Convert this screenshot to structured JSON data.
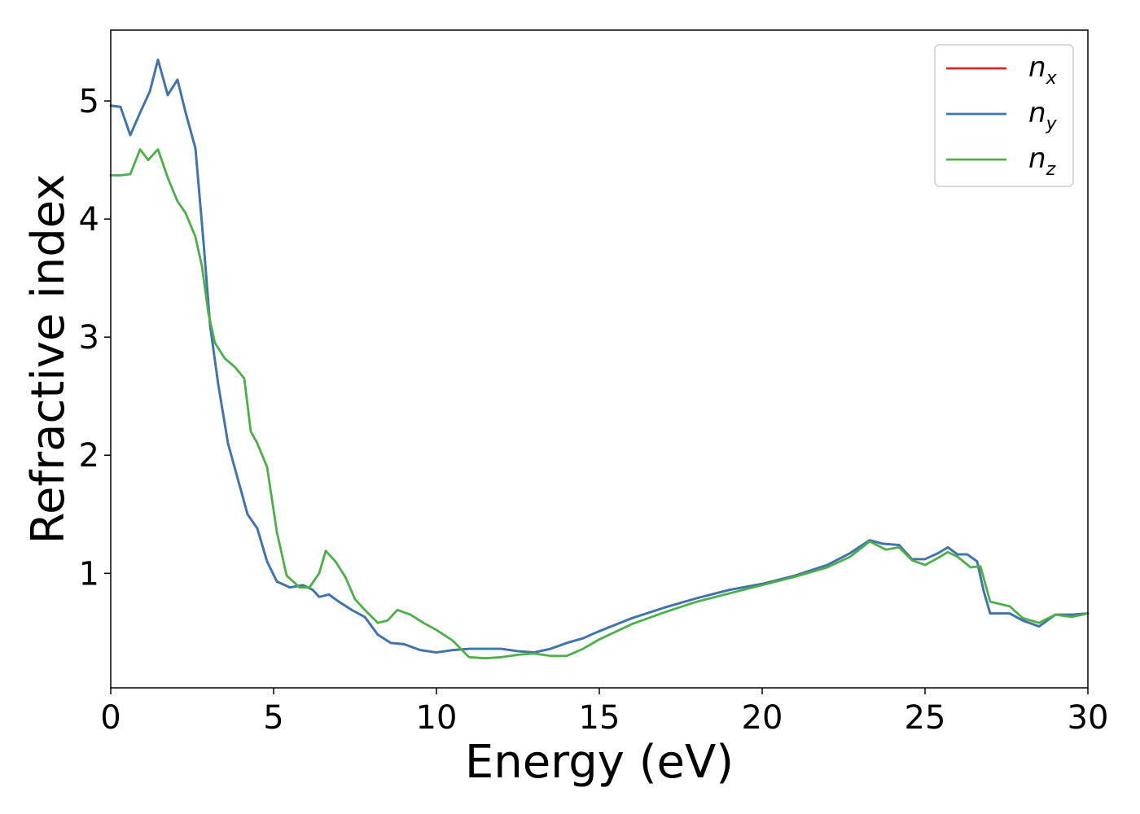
{
  "chart_data": {
    "type": "line",
    "title": "",
    "xlabel": "Energy (eV)",
    "ylabel": "Refractive index",
    "xlim": [
      0,
      30
    ],
    "ylim": [
      0.03,
      5.6
    ],
    "xticks": [
      0,
      5,
      10,
      15,
      20,
      25,
      30
    ],
    "yticks": [
      1,
      2,
      3,
      4,
      5
    ],
    "grid": false,
    "legend_position": "top-right",
    "series": [
      {
        "name": "n_x",
        "legend_base": "n",
        "legend_sub": "x",
        "color": "#d62728",
        "x": [
          0,
          0.3,
          0.6,
          0.9,
          1.2,
          1.45,
          1.75,
          2.05,
          2.3,
          2.6,
          2.85,
          3.05,
          3.3,
          3.6,
          3.9,
          4.2,
          4.5,
          4.8,
          5.1,
          5.5,
          5.9,
          6.2,
          6.4,
          6.7,
          7.0,
          7.4,
          7.8,
          8.2,
          8.6,
          9.0,
          9.5,
          10.0,
          10.5,
          11.0,
          11.5,
          12.0,
          12.5,
          13.0,
          13.5,
          14.0,
          14.5,
          15.0,
          16.0,
          17.0,
          18.0,
          19.0,
          20.0,
          21.0,
          22.0,
          22.7,
          23.3,
          23.7,
          24.2,
          24.6,
          25.0,
          25.4,
          25.7,
          26.0,
          26.3,
          26.6,
          26.8,
          27.0,
          27.3,
          27.6,
          28.0,
          28.5,
          29.0,
          29.5,
          30.0
        ],
        "y": [
          4.96,
          4.95,
          4.71,
          4.9,
          5.08,
          5.35,
          5.05,
          5.18,
          4.9,
          4.6,
          3.8,
          3.1,
          2.6,
          2.1,
          1.8,
          1.5,
          1.38,
          1.1,
          0.93,
          0.88,
          0.9,
          0.86,
          0.8,
          0.82,
          0.76,
          0.69,
          0.63,
          0.48,
          0.41,
          0.4,
          0.35,
          0.33,
          0.35,
          0.36,
          0.36,
          0.36,
          0.34,
          0.33,
          0.36,
          0.41,
          0.45,
          0.51,
          0.62,
          0.71,
          0.79,
          0.86,
          0.91,
          0.98,
          1.07,
          1.17,
          1.28,
          1.25,
          1.24,
          1.12,
          1.12,
          1.17,
          1.22,
          1.16,
          1.16,
          1.1,
          0.85,
          0.66,
          0.66,
          0.66,
          0.6,
          0.55,
          0.65,
          0.65,
          0.66
        ]
      },
      {
        "name": "n_y",
        "legend_base": "n",
        "legend_sub": "y",
        "color": "#3a76b0",
        "x": [
          0,
          0.3,
          0.6,
          0.9,
          1.2,
          1.45,
          1.75,
          2.05,
          2.3,
          2.6,
          2.85,
          3.05,
          3.3,
          3.6,
          3.9,
          4.2,
          4.5,
          4.8,
          5.1,
          5.5,
          5.9,
          6.2,
          6.4,
          6.7,
          7.0,
          7.4,
          7.8,
          8.2,
          8.6,
          9.0,
          9.5,
          10.0,
          10.5,
          11.0,
          11.5,
          12.0,
          12.5,
          13.0,
          13.5,
          14.0,
          14.5,
          15.0,
          16.0,
          17.0,
          18.0,
          19.0,
          20.0,
          21.0,
          22.0,
          22.7,
          23.3,
          23.7,
          24.2,
          24.6,
          25.0,
          25.4,
          25.7,
          26.0,
          26.3,
          26.6,
          26.8,
          27.0,
          27.3,
          27.6,
          28.0,
          28.5,
          29.0,
          29.5,
          30.0
        ],
        "y": [
          4.96,
          4.95,
          4.71,
          4.9,
          5.08,
          5.35,
          5.05,
          5.18,
          4.9,
          4.6,
          3.8,
          3.1,
          2.6,
          2.1,
          1.8,
          1.5,
          1.38,
          1.1,
          0.93,
          0.88,
          0.9,
          0.86,
          0.8,
          0.82,
          0.76,
          0.69,
          0.63,
          0.48,
          0.41,
          0.4,
          0.35,
          0.33,
          0.35,
          0.36,
          0.36,
          0.36,
          0.34,
          0.33,
          0.36,
          0.41,
          0.45,
          0.51,
          0.62,
          0.71,
          0.79,
          0.86,
          0.91,
          0.98,
          1.07,
          1.17,
          1.28,
          1.25,
          1.24,
          1.12,
          1.12,
          1.17,
          1.22,
          1.16,
          1.16,
          1.1,
          0.85,
          0.66,
          0.66,
          0.66,
          0.6,
          0.55,
          0.65,
          0.65,
          0.66
        ]
      },
      {
        "name": "n_z",
        "legend_base": "n",
        "legend_sub": "z",
        "color": "#4daf4a",
        "x": [
          0,
          0.3,
          0.6,
          0.9,
          1.15,
          1.45,
          1.75,
          2.05,
          2.3,
          2.6,
          2.8,
          3.0,
          3.2,
          3.5,
          3.8,
          4.1,
          4.3,
          4.5,
          4.8,
          5.1,
          5.4,
          5.8,
          6.1,
          6.4,
          6.6,
          6.9,
          7.2,
          7.5,
          7.8,
          8.2,
          8.5,
          8.8,
          9.2,
          9.6,
          10.0,
          10.5,
          11.0,
          11.5,
          12.0,
          12.5,
          13.0,
          13.5,
          14.0,
          14.5,
          15.0,
          16.0,
          17.0,
          18.0,
          19.0,
          20.0,
          21.0,
          22.0,
          22.7,
          23.3,
          23.8,
          24.2,
          24.6,
          25.0,
          25.4,
          25.7,
          26.0,
          26.4,
          26.7,
          27.0,
          27.3,
          27.6,
          28.0,
          28.5,
          29.0,
          29.5,
          30.0
        ],
        "y": [
          4.37,
          4.37,
          4.38,
          4.59,
          4.5,
          4.59,
          4.35,
          4.15,
          4.05,
          3.85,
          3.6,
          3.2,
          2.95,
          2.82,
          2.75,
          2.65,
          2.2,
          2.1,
          1.9,
          1.35,
          0.98,
          0.88,
          0.88,
          1.0,
          1.19,
          1.1,
          0.97,
          0.78,
          0.69,
          0.58,
          0.6,
          0.69,
          0.65,
          0.58,
          0.52,
          0.43,
          0.29,
          0.28,
          0.29,
          0.31,
          0.32,
          0.3,
          0.3,
          0.36,
          0.44,
          0.57,
          0.67,
          0.76,
          0.83,
          0.9,
          0.97,
          1.05,
          1.14,
          1.27,
          1.2,
          1.22,
          1.11,
          1.07,
          1.13,
          1.18,
          1.14,
          1.05,
          1.06,
          0.76,
          0.74,
          0.72,
          0.62,
          0.58,
          0.65,
          0.63,
          0.66
        ]
      }
    ]
  }
}
